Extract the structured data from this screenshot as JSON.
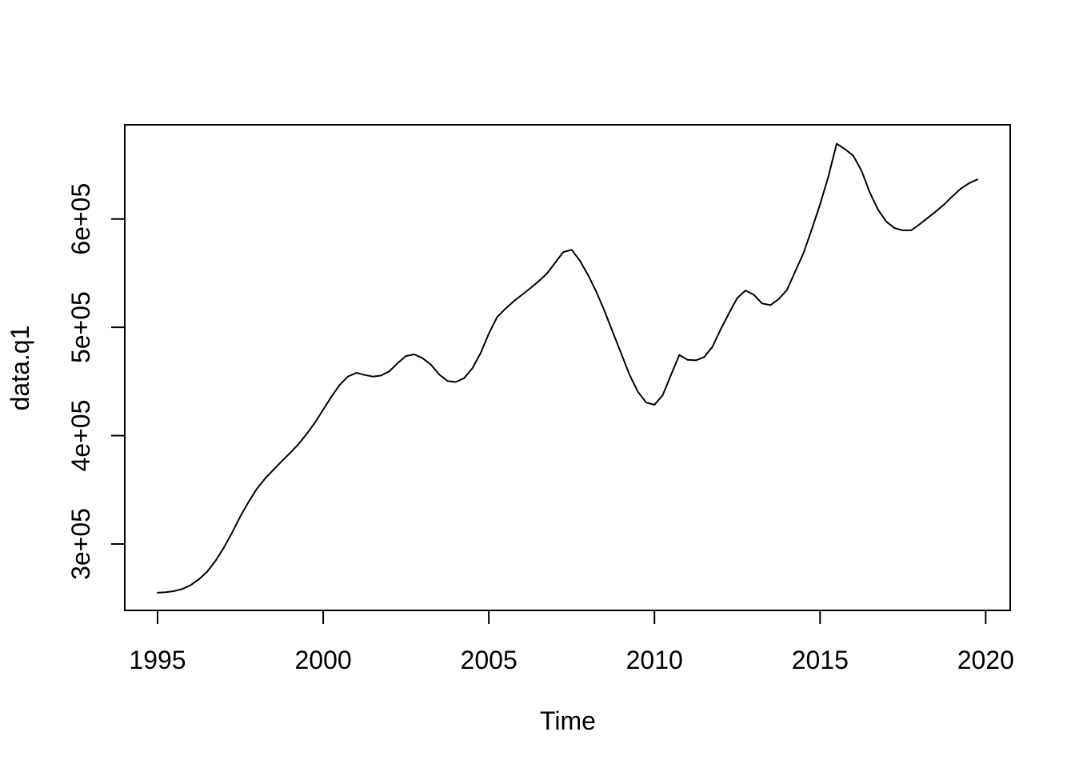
{
  "figure": {
    "background": "#ffffff",
    "line_color": "#000000",
    "text_color": "#000000",
    "axis_color": "#000000"
  },
  "chart_data": {
    "type": "line",
    "title": "",
    "xlabel": "Time",
    "ylabel": "data.q1",
    "series_name": "data.q1",
    "grid": false,
    "legend": null,
    "xlim": [
      1994.01,
      2020.74
    ],
    "ylim": [
      238700,
      686900
    ],
    "x_ticks": {
      "values": [
        1995,
        2000,
        2005,
        2010,
        2015,
        2020
      ],
      "labels": [
        "1995",
        "2000",
        "2005",
        "2010",
        "2015",
        "2020"
      ]
    },
    "y_ticks": {
      "values": [
        300000,
        400000,
        500000,
        600000
      ],
      "labels": [
        "3e+05",
        "4e+05",
        "5e+05",
        "6e+05"
      ]
    },
    "x": [
      1995.0,
      1995.25,
      1995.5,
      1995.75,
      1996.0,
      1996.25,
      1996.5,
      1996.75,
      1997.0,
      1997.25,
      1997.5,
      1997.75,
      1998.0,
      1998.25,
      1998.5,
      1998.75,
      1999.0,
      1999.25,
      1999.5,
      1999.75,
      2000.0,
      2000.25,
      2000.5,
      2000.75,
      2001.0,
      2001.25,
      2001.5,
      2001.75,
      2002.0,
      2002.25,
      2002.5,
      2002.75,
      2003.0,
      2003.25,
      2003.5,
      2003.75,
      2004.0,
      2004.25,
      2004.5,
      2004.75,
      2005.0,
      2005.25,
      2005.5,
      2005.75,
      2006.0,
      2006.25,
      2006.5,
      2006.75,
      2007.0,
      2007.25,
      2007.5,
      2007.75,
      2008.0,
      2008.25,
      2008.5,
      2008.75,
      2009.0,
      2009.25,
      2009.5,
      2009.75,
      2010.0,
      2010.25,
      2010.5,
      2010.75,
      2011.0,
      2011.25,
      2011.5,
      2011.75,
      2012.0,
      2012.25,
      2012.5,
      2012.75,
      2013.0,
      2013.25,
      2013.5,
      2013.75,
      2014.0,
      2014.25,
      2014.5,
      2014.75,
      2015.0,
      2015.25,
      2015.5,
      2015.75,
      2016.0,
      2016.25,
      2016.5,
      2016.75,
      2017.0,
      2017.25,
      2017.5,
      2017.75,
      2018.0,
      2018.25,
      2018.5,
      2018.75,
      2019.0,
      2019.25,
      2019.5,
      2019.75
    ],
    "values": [
      255000,
      255500,
      256500,
      258500,
      262000,
      267500,
      274500,
      284500,
      296500,
      310500,
      325500,
      339000,
      351000,
      360500,
      368500,
      376500,
      384000,
      392000,
      401500,
      412000,
      424000,
      436000,
      447000,
      454500,
      458000,
      456000,
      454500,
      455500,
      459500,
      467000,
      473500,
      475000,
      471500,
      465500,
      456500,
      450500,
      449500,
      453000,
      462000,
      476000,
      494000,
      509500,
      517000,
      524000,
      530000,
      536000,
      542500,
      549500,
      559500,
      569500,
      571500,
      561500,
      548000,
      532500,
      514500,
      495000,
      475500,
      456000,
      440500,
      430500,
      428500,
      437500,
      456000,
      474500,
      470000,
      469500,
      472500,
      482000,
      498000,
      513000,
      527000,
      534000,
      530000,
      522000,
      520500,
      526000,
      534500,
      551500,
      568500,
      590500,
      613500,
      639000,
      669500,
      664500,
      658500,
      644500,
      624500,
      608500,
      597500,
      591500,
      589500,
      589500,
      595000,
      601000,
      607000,
      613500,
      621000,
      628000,
      633000,
      636500
    ]
  }
}
